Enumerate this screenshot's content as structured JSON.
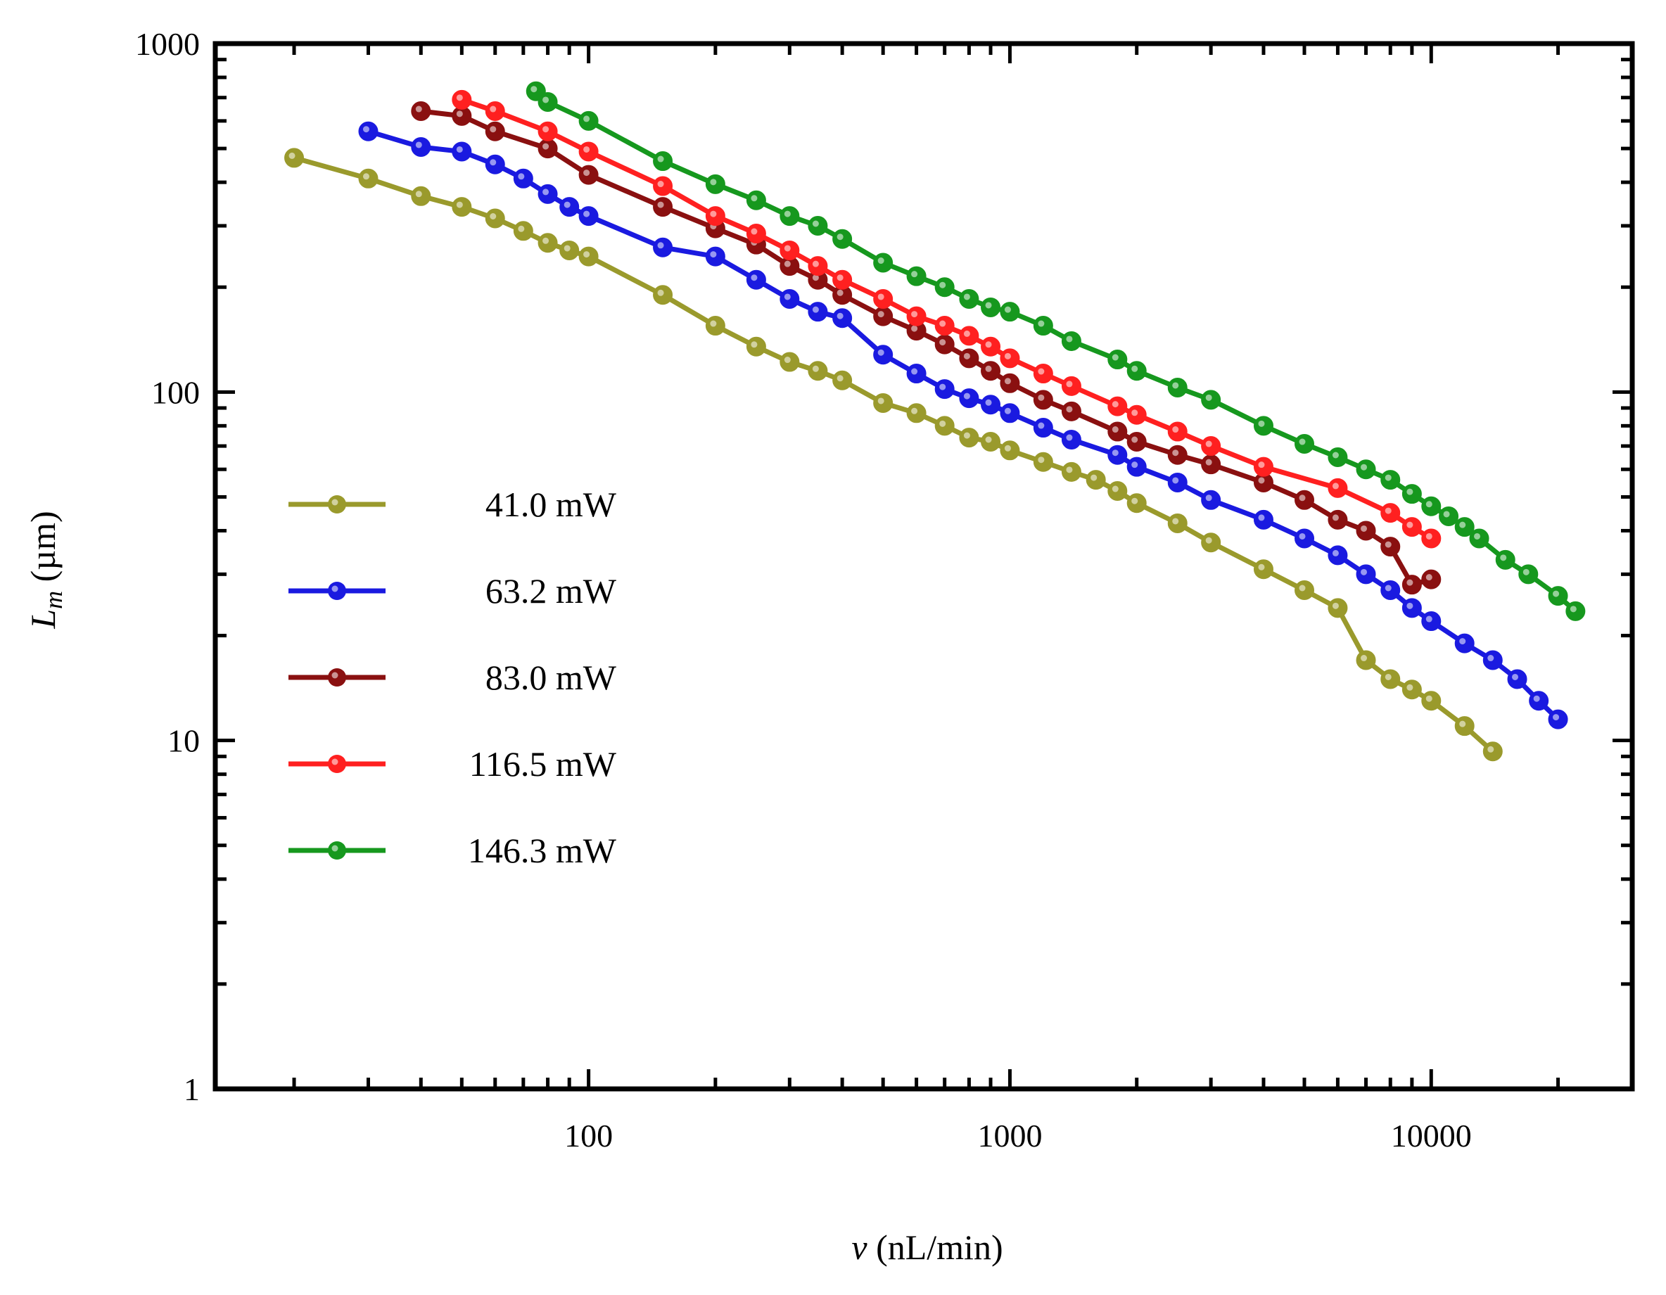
{
  "chart_data": {
    "type": "line",
    "title": "",
    "xlabel": {
      "var": "v",
      "units": " (nL/min)"
    },
    "ylabel": {
      "var": "L",
      "sub": "m",
      "units": " (µm)"
    },
    "xscale": "log",
    "yscale": "log",
    "xlim": [
      13,
      30000
    ],
    "ylim": [
      1,
      1000
    ],
    "xticks": [
      100,
      1000,
      10000
    ],
    "xtick_labels": [
      "100",
      "1000",
      "10000"
    ],
    "yticks": [
      1,
      10,
      100,
      1000
    ],
    "ytick_labels": [
      "1",
      "10",
      "100",
      "1000"
    ],
    "grid": false,
    "legend_position": "center-left",
    "series": [
      {
        "name": "41.0 mW",
        "color": "#9a9a2c",
        "points": [
          [
            20,
            470
          ],
          [
            30,
            410
          ],
          [
            40,
            365
          ],
          [
            50,
            340
          ],
          [
            60,
            315
          ],
          [
            70,
            290
          ],
          [
            80,
            268
          ],
          [
            90,
            255
          ],
          [
            100,
            245
          ],
          [
            150,
            190
          ],
          [
            200,
            155
          ],
          [
            250,
            135
          ],
          [
            300,
            122
          ],
          [
            350,
            115
          ],
          [
            400,
            108
          ],
          [
            500,
            93
          ],
          [
            600,
            87
          ],
          [
            700,
            80
          ],
          [
            800,
            74
          ],
          [
            900,
            72
          ],
          [
            1000,
            68
          ],
          [
            1200,
            63
          ],
          [
            1400,
            59
          ],
          [
            1600,
            56
          ],
          [
            1800,
            52
          ],
          [
            2000,
            48
          ],
          [
            2500,
            42
          ],
          [
            3000,
            37
          ],
          [
            4000,
            31
          ],
          [
            5000,
            27
          ],
          [
            6000,
            24
          ],
          [
            7000,
            17
          ],
          [
            8000,
            15
          ],
          [
            9000,
            14
          ],
          [
            10000,
            13
          ],
          [
            12000,
            11
          ],
          [
            14000,
            9.3
          ]
        ]
      },
      {
        "name": "63.2 mW",
        "color": "#1a1ae0",
        "points": [
          [
            30,
            560
          ],
          [
            40,
            505
          ],
          [
            50,
            490
          ],
          [
            60,
            450
          ],
          [
            70,
            410
          ],
          [
            80,
            370
          ],
          [
            90,
            340
          ],
          [
            100,
            320
          ],
          [
            150,
            260
          ],
          [
            200,
            245
          ],
          [
            250,
            210
          ],
          [
            300,
            185
          ],
          [
            350,
            170
          ],
          [
            400,
            163
          ],
          [
            500,
            128
          ],
          [
            600,
            113
          ],
          [
            700,
            102
          ],
          [
            800,
            96
          ],
          [
            900,
            92
          ],
          [
            1000,
            87
          ],
          [
            1200,
            79
          ],
          [
            1400,
            73
          ],
          [
            1800,
            66
          ],
          [
            2000,
            61
          ],
          [
            2500,
            55
          ],
          [
            3000,
            49
          ],
          [
            4000,
            43
          ],
          [
            5000,
            38
          ],
          [
            6000,
            34
          ],
          [
            7000,
            30
          ],
          [
            8000,
            27
          ],
          [
            9000,
            24
          ],
          [
            10000,
            22
          ],
          [
            12000,
            19
          ],
          [
            14000,
            17
          ],
          [
            16000,
            15
          ],
          [
            18000,
            13
          ],
          [
            20000,
            11.5
          ]
        ]
      },
      {
        "name": "83.0 mW",
        "color": "#8a1010",
        "points": [
          [
            40,
            640
          ],
          [
            50,
            620
          ],
          [
            60,
            560
          ],
          [
            80,
            500
          ],
          [
            100,
            420
          ],
          [
            150,
            340
          ],
          [
            200,
            295
          ],
          [
            250,
            265
          ],
          [
            300,
            230
          ],
          [
            350,
            210
          ],
          [
            400,
            190
          ],
          [
            500,
            165
          ],
          [
            600,
            150
          ],
          [
            700,
            137
          ],
          [
            800,
            125
          ],
          [
            900,
            115
          ],
          [
            1000,
            106
          ],
          [
            1200,
            95
          ],
          [
            1400,
            88
          ],
          [
            1800,
            77
          ],
          [
            2000,
            72
          ],
          [
            2500,
            66
          ],
          [
            3000,
            62
          ],
          [
            4000,
            55
          ],
          [
            5000,
            49
          ],
          [
            6000,
            43
          ],
          [
            7000,
            40
          ],
          [
            8000,
            36
          ],
          [
            9000,
            28
          ],
          [
            10000,
            29
          ]
        ]
      },
      {
        "name": "116.5 mW",
        "color": "#ff2020",
        "points": [
          [
            50,
            690
          ],
          [
            60,
            640
          ],
          [
            80,
            560
          ],
          [
            100,
            490
          ],
          [
            150,
            390
          ],
          [
            200,
            320
          ],
          [
            250,
            285
          ],
          [
            300,
            255
          ],
          [
            350,
            230
          ],
          [
            400,
            210
          ],
          [
            500,
            185
          ],
          [
            600,
            165
          ],
          [
            700,
            155
          ],
          [
            800,
            145
          ],
          [
            900,
            135
          ],
          [
            1000,
            125
          ],
          [
            1200,
            113
          ],
          [
            1400,
            104
          ],
          [
            1800,
            91
          ],
          [
            2000,
            86
          ],
          [
            2500,
            77
          ],
          [
            3000,
            70
          ],
          [
            4000,
            61
          ],
          [
            6000,
            53
          ],
          [
            8000,
            45
          ],
          [
            9000,
            41
          ],
          [
            10000,
            38
          ]
        ]
      },
      {
        "name": "146.3 mW",
        "color": "#16981e",
        "points": [
          [
            75,
            730
          ],
          [
            80,
            680
          ],
          [
            100,
            600
          ],
          [
            150,
            460
          ],
          [
            200,
            395
          ],
          [
            250,
            355
          ],
          [
            300,
            320
          ],
          [
            350,
            300
          ],
          [
            400,
            275
          ],
          [
            500,
            235
          ],
          [
            600,
            215
          ],
          [
            700,
            200
          ],
          [
            800,
            185
          ],
          [
            900,
            175
          ],
          [
            1000,
            170
          ],
          [
            1200,
            155
          ],
          [
            1400,
            140
          ],
          [
            1800,
            124
          ],
          [
            2000,
            115
          ],
          [
            2500,
            103
          ],
          [
            3000,
            95
          ],
          [
            4000,
            80
          ],
          [
            5000,
            71
          ],
          [
            6000,
            65
          ],
          [
            7000,
            60
          ],
          [
            8000,
            56
          ],
          [
            9000,
            51
          ],
          [
            10000,
            47
          ],
          [
            11000,
            44
          ],
          [
            12000,
            41
          ],
          [
            13000,
            38
          ],
          [
            15000,
            33
          ],
          [
            17000,
            30
          ],
          [
            20000,
            26
          ],
          [
            22000,
            23.5
          ]
        ]
      }
    ]
  }
}
